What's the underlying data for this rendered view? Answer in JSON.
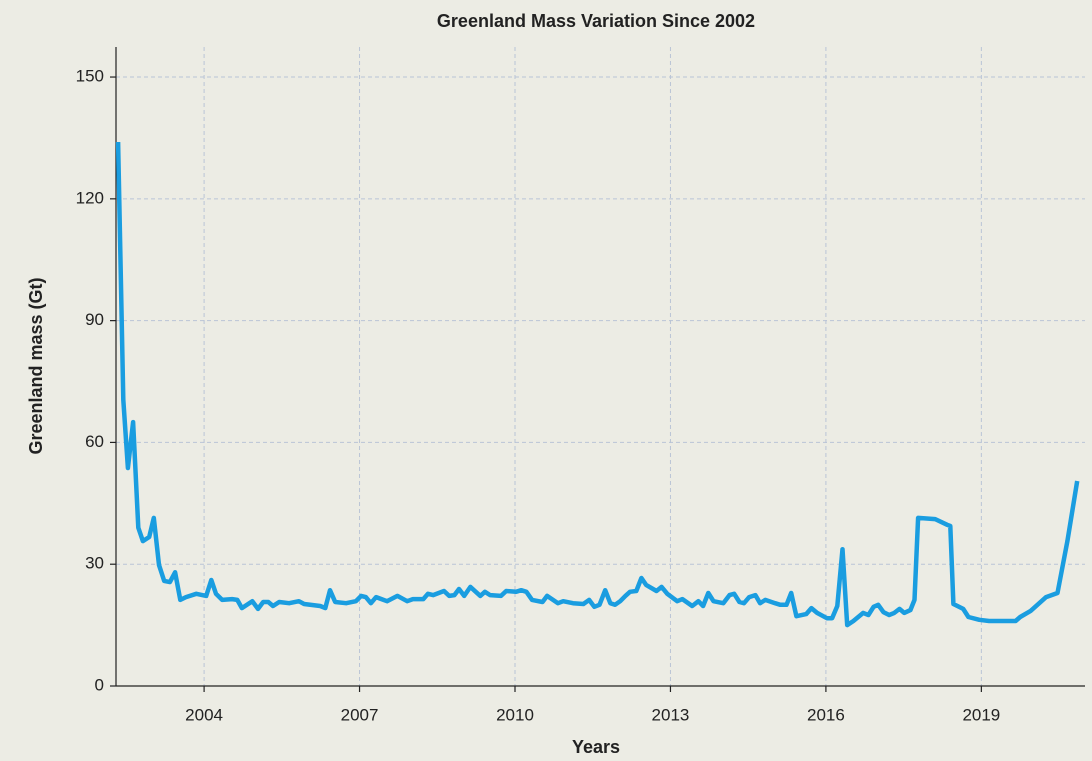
{
  "chart_data": {
    "type": "line",
    "title": "Greenland Mass Variation Since 2002",
    "xlabel": "Years",
    "ylabel": "Greenland mass (Gt)",
    "xlim": [
      2002.3,
      2021.0
    ],
    "ylim": [
      0,
      157.4
    ],
    "xticks": [
      2004,
      2007,
      2010,
      2013,
      2016,
      2019
    ],
    "yticks": [
      0,
      30,
      60,
      90,
      120,
      150
    ],
    "grid": true,
    "series": [
      {
        "name": "Greenland mass",
        "color": "#1a9de0",
        "x": [
          2002.34,
          2002.44,
          2002.53,
          2002.63,
          2002.73,
          2002.82,
          2002.94,
          2003.03,
          2003.13,
          2003.23,
          2003.34,
          2003.44,
          2003.54,
          2003.65,
          2003.85,
          2004.04,
          2004.14,
          2004.23,
          2004.35,
          2004.54,
          2004.64,
          2004.73,
          2004.93,
          2005.04,
          2005.14,
          2005.24,
          2005.33,
          2005.45,
          2005.64,
          2005.83,
          2005.93,
          2006.24,
          2006.34,
          2006.43,
          2006.53,
          2006.74,
          2006.93,
          2007.03,
          2007.12,
          2007.22,
          2007.32,
          2007.53,
          2007.73,
          2007.92,
          2008.03,
          2008.23,
          2008.32,
          2008.42,
          2008.63,
          2008.73,
          2008.83,
          2008.92,
          2009.02,
          2009.14,
          2009.33,
          2009.42,
          2009.52,
          2009.73,
          2009.83,
          2010.02,
          2010.12,
          2010.22,
          2010.33,
          2010.53,
          2010.62,
          2010.83,
          2010.93,
          2011.12,
          2011.32,
          2011.43,
          2011.53,
          2011.63,
          2011.74,
          2011.84,
          2011.93,
          2012.03,
          2012.13,
          2012.22,
          2012.34,
          2012.44,
          2012.53,
          2012.73,
          2012.83,
          2012.94,
          2013.13,
          2013.23,
          2013.42,
          2013.54,
          2013.63,
          2013.73,
          2013.83,
          2014.02,
          2014.14,
          2014.23,
          2014.33,
          2014.42,
          2014.52,
          2014.64,
          2014.73,
          2014.83,
          2015.02,
          2015.12,
          2015.24,
          2015.33,
          2015.43,
          2015.62,
          2015.72,
          2015.83,
          2016.02,
          2016.12,
          2016.22,
          2016.32,
          2016.41,
          2016.53,
          2016.72,
          2016.82,
          2016.92,
          2017.01,
          2017.11,
          2017.22,
          2017.32,
          2017.42,
          2017.51,
          2017.63,
          2017.71,
          2017.78,
          2018.11,
          2018.34,
          2018.4,
          2018.46,
          2018.65,
          2018.75,
          2018.96,
          2019.15,
          2019.35,
          2019.66,
          2019.75,
          2019.95,
          2020.25,
          2020.47,
          2020.66,
          2020.85
        ],
        "values": [
          134,
          70.5,
          53.7,
          65,
          39,
          35.7,
          36.7,
          41.4,
          29.8,
          25.9,
          25.6,
          28,
          21.2,
          21.9,
          22.7,
          22.2,
          26.1,
          22.7,
          21.2,
          21.4,
          21.2,
          19.2,
          20.9,
          19,
          20.7,
          20.7,
          19.7,
          20.7,
          20.4,
          20.9,
          20.2,
          19.7,
          19.2,
          23.6,
          20.7,
          20.4,
          20.9,
          22.2,
          21.9,
          20.4,
          21.9,
          20.9,
          22.2,
          20.9,
          21.4,
          21.4,
          22.7,
          22.4,
          23.4,
          22.2,
          22.4,
          23.9,
          22.2,
          24.4,
          22.2,
          23.2,
          22.4,
          22.2,
          23.4,
          23.2,
          23.6,
          23.2,
          21.2,
          20.7,
          22.2,
          20.4,
          20.9,
          20.4,
          20.2,
          21.2,
          19.5,
          20,
          23.6,
          20.4,
          20,
          20.9,
          22.2,
          23.2,
          23.4,
          26.6,
          24.9,
          23.4,
          24.4,
          22.7,
          20.9,
          21.4,
          19.7,
          20.9,
          19.7,
          22.9,
          20.9,
          20.4,
          22.4,
          22.7,
          20.7,
          20.4,
          21.9,
          22.4,
          20.4,
          21.2,
          20.4,
          20,
          20,
          22.9,
          17.2,
          17.7,
          19.2,
          18,
          16.7,
          16.7,
          19.7,
          33.7,
          15,
          16,
          18,
          17.5,
          19.5,
          20,
          18.2,
          17.5,
          18,
          19,
          18,
          18.7,
          21.2,
          41.4,
          41.1,
          39.7,
          39.4,
          20.2,
          19,
          17,
          16.3,
          16,
          16,
          16,
          17,
          18.5,
          21.9,
          22.9,
          35.7,
          50.5
        ]
      }
    ]
  }
}
